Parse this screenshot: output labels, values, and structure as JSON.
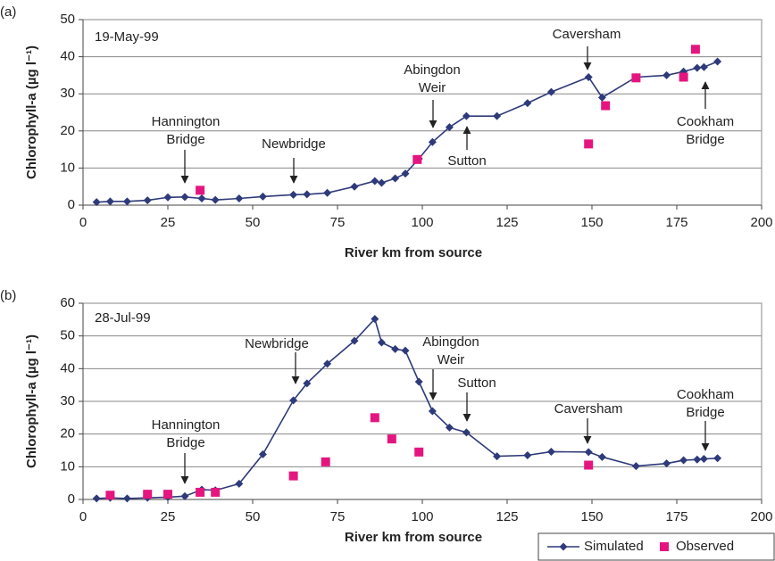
{
  "chart_data": [
    {
      "type": "line",
      "panel_label": "(a)",
      "subtitle": "19-May-99",
      "xlabel": "River km from source",
      "ylabel": "Chlorophyll-a (µg l⁻¹)",
      "xlim": [
        0,
        200
      ],
      "xticks": [
        0,
        25,
        50,
        75,
        100,
        125,
        150,
        175,
        200
      ],
      "ylim": [
        0,
        50
      ],
      "yticks": [
        0,
        10,
        20,
        30,
        40,
        50
      ],
      "grid": true,
      "series": [
        {
          "name": "Simulated",
          "color": "#2e3a7a",
          "marker": "diamond",
          "line": true,
          "x": [
            4,
            8,
            13,
            19,
            25,
            30,
            35,
            39,
            46,
            53,
            62,
            66,
            72,
            80,
            86,
            88,
            92,
            95,
            99,
            103,
            108,
            113,
            122,
            131,
            138,
            149,
            153,
            163,
            172,
            177,
            181,
            183,
            187
          ],
          "values": [
            0.8,
            1.0,
            1.0,
            1.3,
            2.1,
            2.2,
            1.8,
            1.4,
            1.8,
            2.3,
            2.8,
            2.9,
            3.3,
            5.0,
            6.5,
            6.0,
            7.2,
            8.5,
            12.5,
            17,
            21,
            24,
            24,
            27.5,
            30.5,
            34.5,
            29,
            34.5,
            35,
            36,
            37,
            37.2,
            38.7
          ]
        },
        {
          "name": "Observed",
          "color": "#e5157f",
          "marker": "square",
          "line": false,
          "x": [
            34.5,
            98.5,
            149,
            154,
            163,
            177,
            180.5
          ],
          "values": [
            4.0,
            12.3,
            16.5,
            26.8,
            34.3,
            34.5,
            42
          ]
        }
      ],
      "annotations": [
        {
          "text": [
            "Hannington",
            "Bridge"
          ]
        },
        {
          "text": [
            "Newbridge"
          ]
        },
        {
          "text": [
            "Abingdon",
            "Weir"
          ]
        },
        {
          "text": [
            "Sutton"
          ]
        },
        {
          "text": [
            "Caversham"
          ]
        },
        {
          "text": [
            "Cookham",
            "Bridge"
          ]
        }
      ]
    },
    {
      "type": "line",
      "panel_label": "(b)",
      "subtitle": "28-Jul-99",
      "xlabel": "River km from source",
      "ylabel": "Chlorophyll-a (µg l⁻¹)",
      "xlim": [
        0,
        200
      ],
      "xticks": [
        0,
        25,
        50,
        75,
        100,
        125,
        150,
        175,
        200
      ],
      "ylim": [
        0,
        60
      ],
      "yticks": [
        0,
        10,
        20,
        30,
        40,
        50,
        60
      ],
      "grid": true,
      "legend": "bottom-right",
      "series": [
        {
          "name": "Simulated",
          "color": "#2e3a7a",
          "marker": "diamond",
          "line": true,
          "x": [
            4,
            8,
            13,
            19,
            25,
            30,
            35,
            39,
            46,
            53,
            62,
            66,
            72,
            80,
            86,
            88,
            92,
            95,
            99,
            103,
            108,
            113,
            122,
            131,
            138,
            149,
            153,
            163,
            172,
            177,
            181,
            183,
            187
          ],
          "values": [
            0.3,
            0.5,
            0.3,
            0.5,
            0.7,
            1.0,
            3.0,
            2.8,
            4.8,
            13.8,
            30.3,
            35.5,
            41.5,
            48.5,
            55.2,
            48,
            46,
            45.5,
            36,
            27,
            22,
            20.5,
            13.2,
            13.5,
            14.6,
            14.5,
            13,
            10.2,
            11,
            12,
            12.2,
            12.4,
            12.6
          ]
        },
        {
          "name": "Observed",
          "color": "#e5157f",
          "marker": "square",
          "line": false,
          "x": [
            8,
            19,
            25,
            34.5,
            39,
            62,
            71.5,
            86,
            91,
            99,
            149
          ],
          "values": [
            1.3,
            1.6,
            1.6,
            2.2,
            2.2,
            7.2,
            11.5,
            25,
            18.5,
            14.5,
            10.5
          ]
        }
      ],
      "annotations": [
        {
          "text": [
            "Hannington",
            "Bridge"
          ]
        },
        {
          "text": [
            "Newbridge"
          ]
        },
        {
          "text": [
            "Abingdon",
            "Weir"
          ]
        },
        {
          "text": [
            "Sutton"
          ]
        },
        {
          "text": [
            "Caversham"
          ]
        },
        {
          "text": [
            "Cookham",
            "Bridge"
          ]
        }
      ]
    }
  ]
}
